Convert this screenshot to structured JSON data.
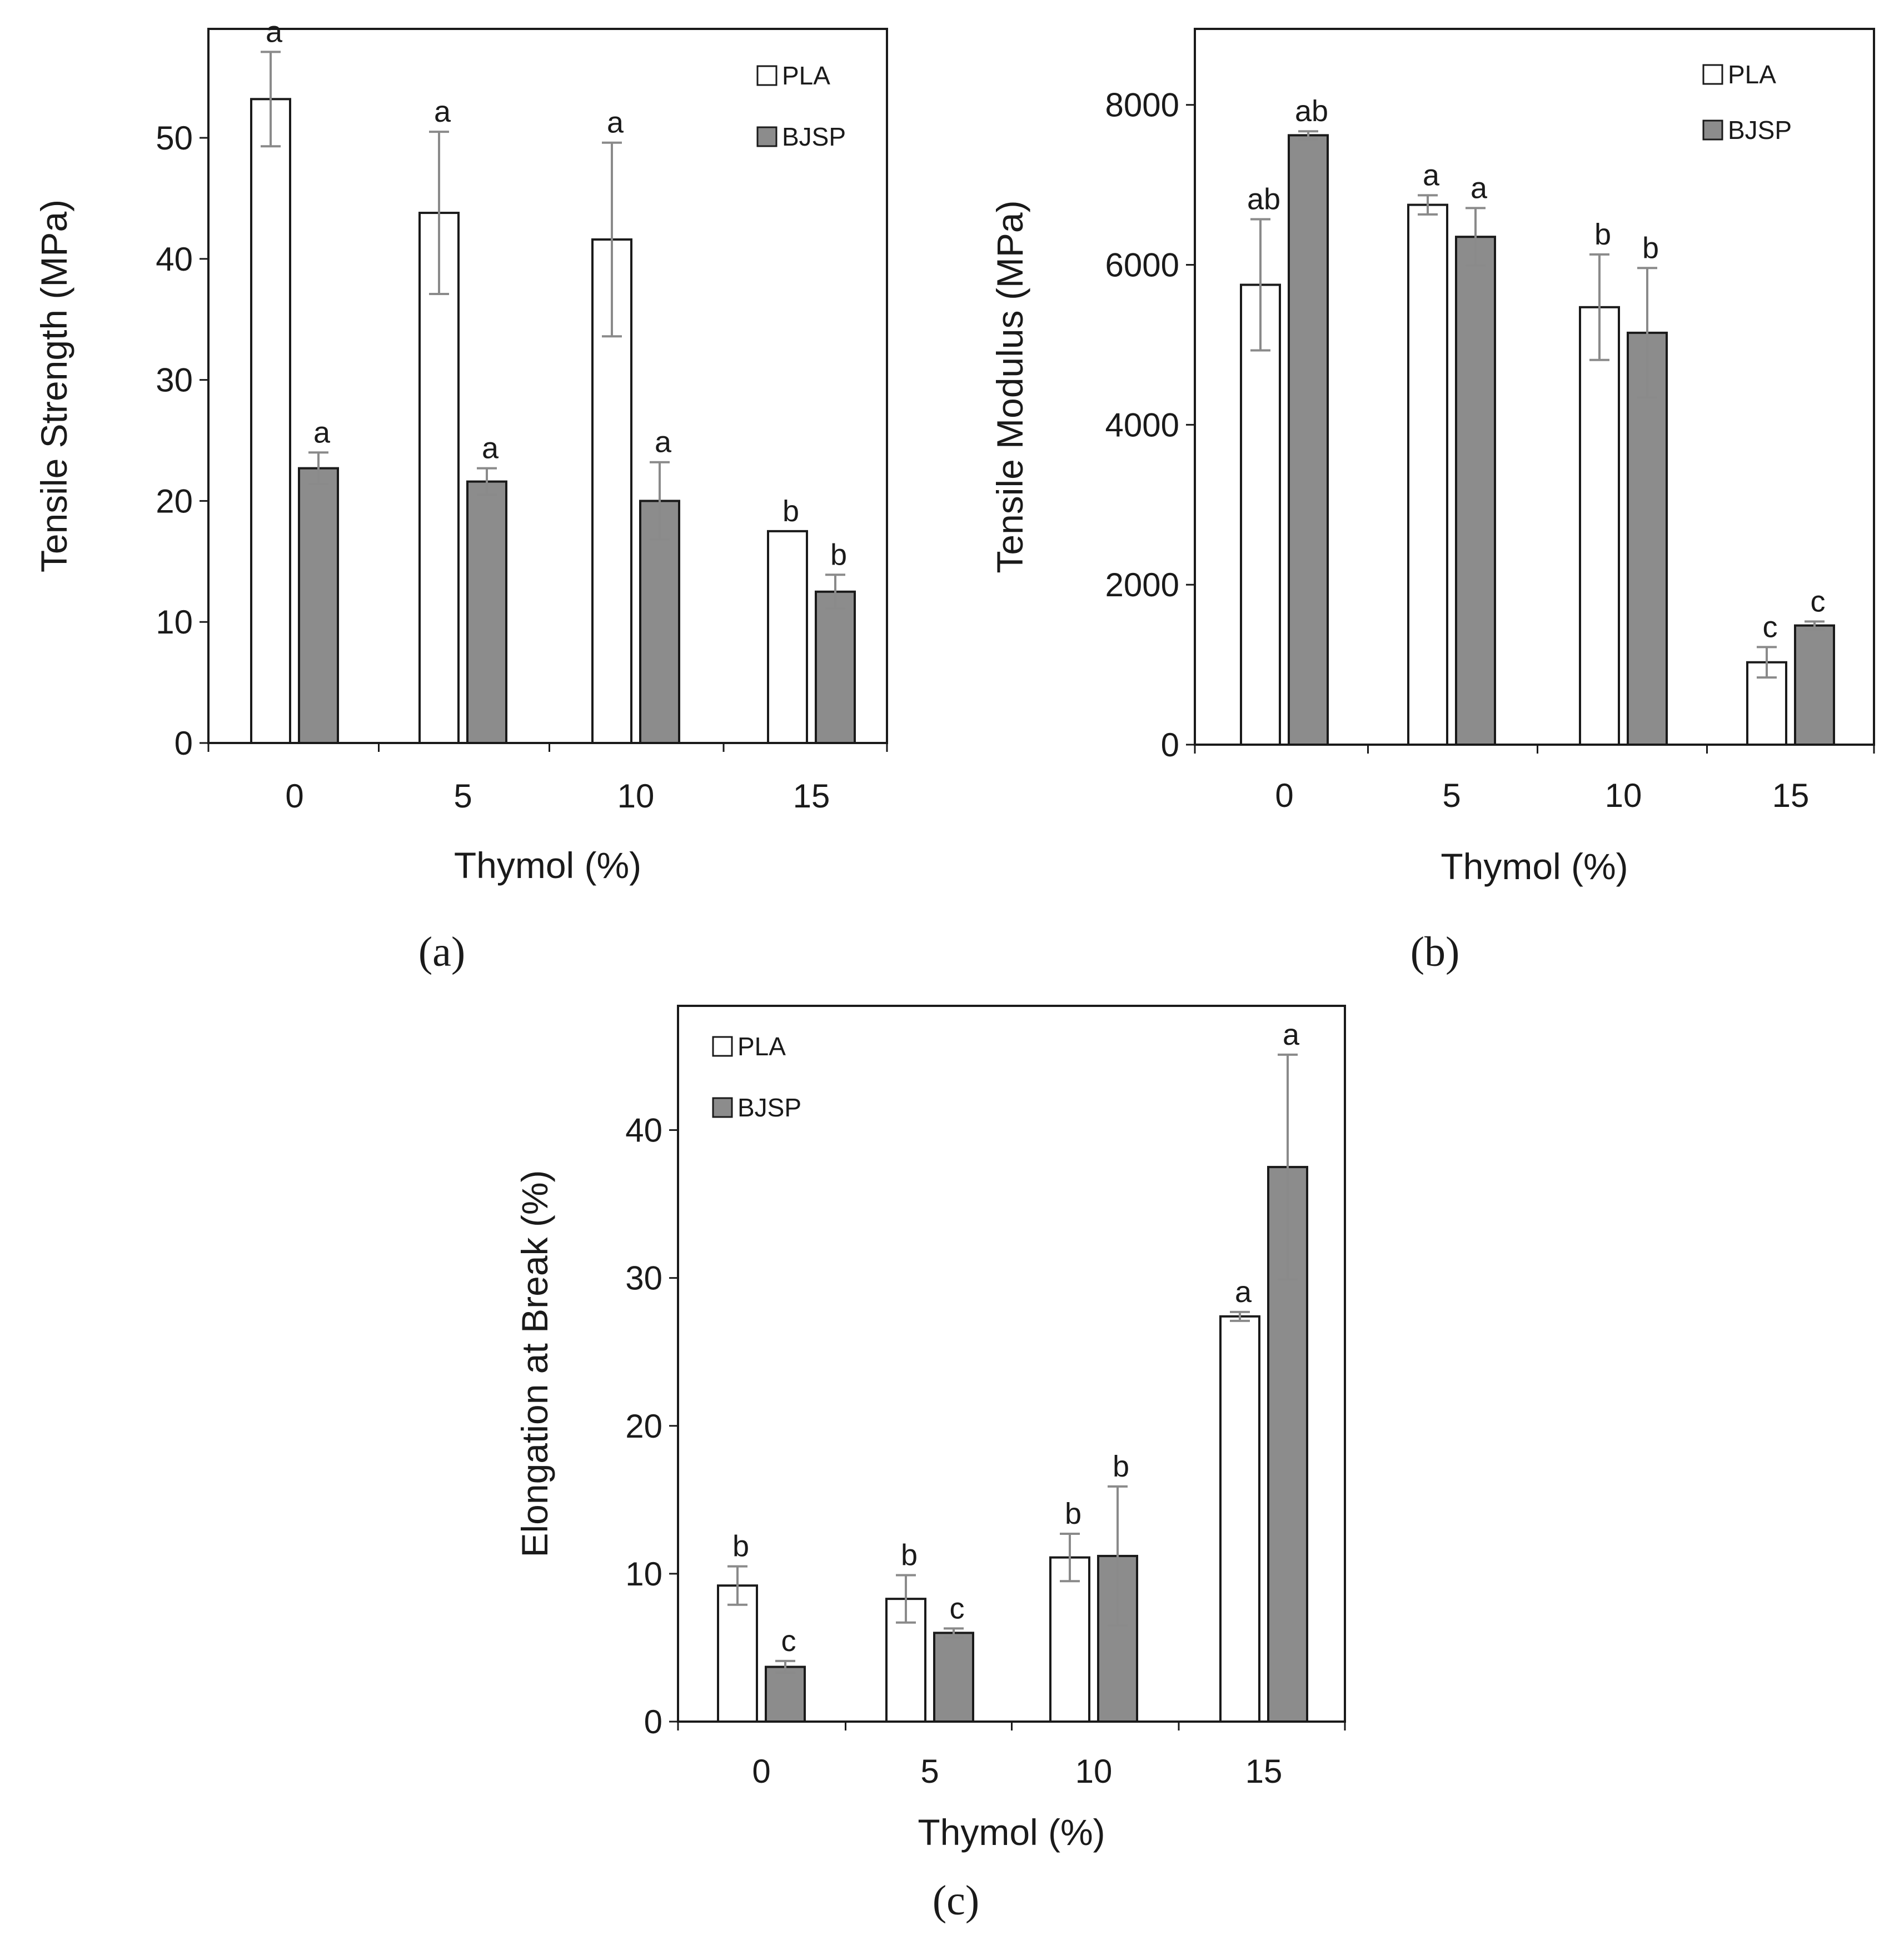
{
  "figure": {
    "panel_labels": [
      "(a)",
      "(b)",
      "(c)"
    ]
  },
  "chart_data": [
    {
      "type": "bar",
      "panel": "(a)",
      "title": "",
      "xlabel": "Thymol (%)",
      "ylabel": "Tensile Strength (MPa)",
      "categories": [
        "0",
        "5",
        "10",
        "15"
      ],
      "ylim": [
        0,
        59
      ],
      "yticks": [
        0,
        10,
        20,
        30,
        40,
        50
      ],
      "grid": false,
      "legend_position": "top-right",
      "series": [
        {
          "name": "PLA",
          "color": "#ffffff",
          "values": [
            53.2,
            43.8,
            41.6,
            17.5
          ],
          "errors": [
            3.9,
            6.7,
            8.0,
            0
          ],
          "significance": [
            "a",
            "a",
            "a",
            "b"
          ]
        },
        {
          "name": "BJSP",
          "color": "#8c8c8c",
          "values": [
            22.7,
            21.6,
            20.0,
            12.5
          ],
          "errors": [
            1.3,
            1.1,
            3.2,
            1.4
          ],
          "significance": [
            "a",
            "a",
            "a",
            "b"
          ]
        }
      ]
    },
    {
      "type": "bar",
      "panel": "(b)",
      "title": "",
      "xlabel": "Thymol (%)",
      "ylabel": "Tensile Modulus (MPa)",
      "categories": [
        "0",
        "5",
        "10",
        "15"
      ],
      "ylim": [
        0,
        8950
      ],
      "yticks": [
        0,
        2000,
        4000,
        6000,
        8000
      ],
      "grid": false,
      "legend_position": "top-right",
      "series": [
        {
          "name": "PLA",
          "color": "#ffffff",
          "values": [
            5750,
            6750,
            5470,
            1030
          ],
          "errors": [
            820,
            120,
            660,
            190
          ],
          "significance": [
            "ab",
            "a",
            "b",
            "c"
          ]
        },
        {
          "name": "BJSP",
          "color": "#8c8c8c",
          "values": [
            7620,
            6350,
            5150,
            1490
          ],
          "errors": [
            50,
            360,
            810,
            50
          ],
          "significance": [
            "ab",
            "a",
            "b",
            "c"
          ]
        }
      ]
    },
    {
      "type": "bar",
      "panel": "(c)",
      "title": "",
      "xlabel": "Thymol (%)",
      "ylabel": "Elongation at Break (%)",
      "categories": [
        "0",
        "5",
        "10",
        "15"
      ],
      "ylim": [
        0,
        48.4
      ],
      "yticks": [
        0,
        10,
        20,
        30,
        40
      ],
      "grid": false,
      "legend_position": "top-left",
      "series": [
        {
          "name": "PLA",
          "color": "#ffffff",
          "values": [
            9.2,
            8.3,
            11.1,
            27.4
          ],
          "errors": [
            1.3,
            1.6,
            1.6,
            0.3
          ],
          "significance": [
            "b",
            "b",
            "b",
            "a"
          ]
        },
        {
          "name": "BJSP",
          "color": "#8c8c8c",
          "values": [
            3.7,
            6.0,
            11.2,
            37.5
          ],
          "errors": [
            0.4,
            0.3,
            4.7,
            7.6
          ],
          "significance": [
            "c",
            "c",
            "b",
            "a"
          ]
        }
      ]
    }
  ]
}
